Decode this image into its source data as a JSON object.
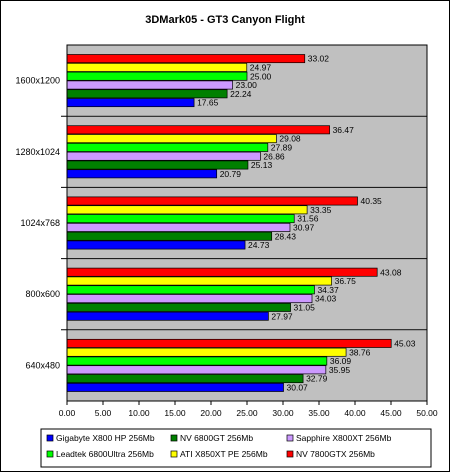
{
  "chart_data": {
    "type": "bar",
    "orientation": "horizontal",
    "title": "3DMark05 - GT3 Canyon Flight",
    "xlabel": "",
    "ylabel": "",
    "categories": [
      "1600x1200",
      "1280x1024",
      "1024x768",
      "800x600",
      "640x480"
    ],
    "series": [
      {
        "name": "NV 7800GTX 256Mb",
        "color": "#ff0000",
        "values": [
          33.02,
          36.47,
          40.35,
          43.08,
          45.03
        ]
      },
      {
        "name": "ATI X850XT PE 256Mb",
        "color": "#ffff00",
        "values": [
          24.97,
          29.08,
          33.35,
          36.75,
          38.76
        ]
      },
      {
        "name": "Leadtek 6800Ultra 256Mb",
        "color": "#00ff00",
        "values": [
          25.0,
          27.89,
          31.56,
          34.37,
          36.09
        ]
      },
      {
        "name": "Sapphire X800XT 256Mb",
        "color": "#cc99ff",
        "values": [
          23.0,
          26.86,
          30.97,
          34.03,
          35.95
        ]
      },
      {
        "name": "NV 6800GT 256Mb",
        "color": "#008000",
        "values": [
          22.24,
          25.13,
          28.43,
          31.05,
          32.79
        ]
      },
      {
        "name": "Gigabyte X800 HP 256Mb",
        "color": "#0000ff",
        "values": [
          17.65,
          20.79,
          24.73,
          27.97,
          30.07
        ]
      }
    ],
    "xlim": [
      0,
      50
    ],
    "xticks": [
      "0.00",
      "5.00",
      "10.00",
      "15.00",
      "20.00",
      "25.00",
      "30.00",
      "35.00",
      "40.00",
      "45.00",
      "50.00"
    ],
    "value_labels": [
      [
        "33.02",
        "36.47",
        "40.35",
        "43.08",
        "45.03"
      ],
      [
        "24.97",
        "29.08",
        "33.35",
        "36.75",
        "38.76"
      ],
      [
        "25.00",
        "27.89",
        "31.56",
        "34.37",
        "36.09"
      ],
      [
        "23.00",
        "26.86",
        "30.97",
        "34.03",
        "35.95"
      ],
      [
        "22.24",
        "25.13",
        "28.43",
        "31.05",
        "32.79"
      ],
      [
        "17.65",
        "20.79",
        "24.73",
        "27.97",
        "30.07"
      ]
    ],
    "grid": false,
    "legend_position": "bottom",
    "legend_order": [
      5,
      4,
      3,
      2,
      1,
      0
    ],
    "category_background": "#c0c0c0"
  }
}
